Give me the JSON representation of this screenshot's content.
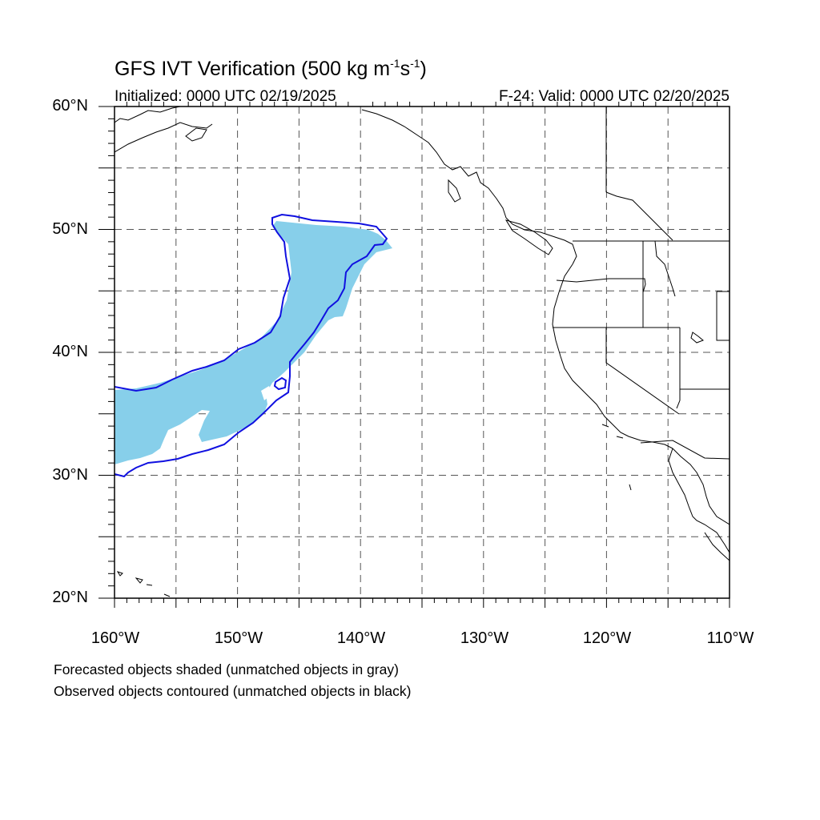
{
  "header": {
    "title_main": "GFS IVT Verification (500 kg m",
    "title_sup1": "-1",
    "title_mid": "s",
    "title_sup2": "-1",
    "title_end": ")",
    "initialized": "Initialized: 0000 UTC 02/19/2025",
    "valid": "F-24: Valid: 0000 UTC 02/20/2025"
  },
  "map": {
    "projection": "cylindrical equidistant",
    "lon_range": [
      -160,
      -110
    ],
    "lat_range": [
      20,
      60
    ],
    "grid": "dashed, every 5 degrees",
    "lat_labels": [
      "60°N",
      "50°N",
      "40°N",
      "30°N",
      "20°N"
    ],
    "lon_labels": [
      "160°W",
      "150°W",
      "140°W",
      "130°W",
      "120°W",
      "110°W"
    ],
    "forecast_fill_color": "#87cfea",
    "observed_contour_color": "#1010e0"
  },
  "notes": {
    "line1": "Forecasted objects shaded (unmatched objects in gray)",
    "line2": "Observed objects contoured (unmatched objects in black)"
  }
}
